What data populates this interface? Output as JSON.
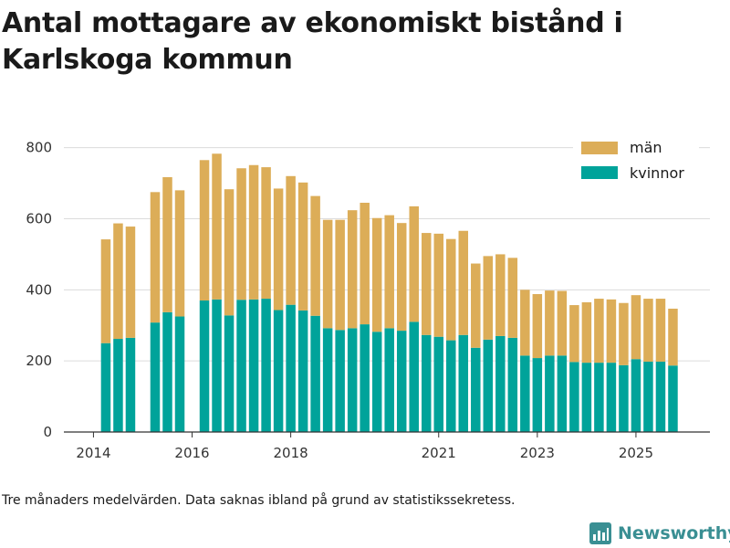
{
  "title": "Antal mottagare av ekonomiskt bistånd i Karlskoga kommun",
  "footnote": "Tre månaders medelvärden. Data saknas ibland på grund av statistikssekretess.",
  "brand": "Newsworthy",
  "colors": {
    "man": "#dcad58",
    "kvinnor": "#00a39a",
    "grid": "#dcdcdc",
    "axis": "#333333"
  },
  "chart_data": {
    "type": "bar",
    "stacked": true,
    "title": "Antal mottagare av ekonomiskt bistånd i Karlskoga kommun",
    "xlabel": "",
    "ylabel": "",
    "ylim": [
      0,
      830
    ],
    "xlim": [
      2013.4,
      2026.5
    ],
    "yticks": [
      0,
      200,
      400,
      600,
      800
    ],
    "xticks": [
      "2014",
      "2016",
      "2018",
      "2021",
      "2023",
      "2025"
    ],
    "xtick_positions": [
      2014.0,
      2016.0,
      2018.0,
      2021.0,
      2023.0,
      2025.0
    ],
    "grid": true,
    "legend_position": "top-right",
    "legend": [
      "män",
      "kvinnor"
    ],
    "x": [
      2014.25,
      2014.5,
      2014.75,
      2015.25,
      2015.5,
      2015.75,
      2016.25,
      2016.5,
      2016.75,
      2017.0,
      2017.25,
      2017.5,
      2017.75,
      2018.0,
      2018.25,
      2018.5,
      2018.75,
      2019.0,
      2019.25,
      2019.5,
      2019.75,
      2020.0,
      2020.25,
      2020.5,
      2020.75,
      2021.0,
      2021.25,
      2021.5,
      2021.75,
      2022.0,
      2022.25,
      2022.5,
      2022.75,
      2023.0,
      2023.25,
      2023.5,
      2023.75,
      2024.0,
      2024.25,
      2024.5,
      2024.75,
      2025.0,
      2025.25,
      2025.5,
      2025.75
    ],
    "series": [
      {
        "name": "kvinnor",
        "color": "#00a39a",
        "values": [
          250,
          262,
          265,
          308,
          337,
          325,
          370,
          373,
          328,
          372,
          373,
          375,
          343,
          358,
          342,
          327,
          292,
          287,
          292,
          303,
          282,
          292,
          285,
          310,
          273,
          268,
          258,
          273,
          237,
          260,
          270,
          265,
          215,
          208,
          215,
          215,
          197,
          195,
          195,
          195,
          188,
          205,
          198,
          198,
          187
        ]
      },
      {
        "name": "män",
        "color": "#dcad58",
        "values": [
          292,
          325,
          313,
          367,
          380,
          355,
          395,
          410,
          355,
          370,
          378,
          370,
          342,
          362,
          360,
          337,
          305,
          310,
          332,
          342,
          320,
          318,
          303,
          325,
          287,
          290,
          285,
          293,
          237,
          235,
          230,
          225,
          185,
          180,
          183,
          182,
          160,
          170,
          180,
          178,
          175,
          180,
          177,
          177,
          160
        ]
      }
    ]
  }
}
